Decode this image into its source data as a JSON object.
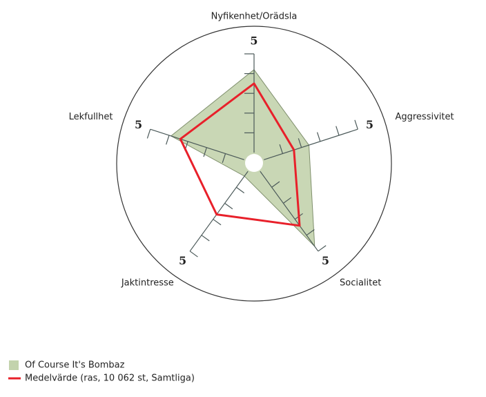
{
  "chart_data": {
    "type": "radar",
    "categories": [
      "Nyfikenhet/Orädsla",
      "Aggressivitet",
      "Socialitet",
      "Jaktintresse",
      "Lekfullhet"
    ],
    "ylim": [
      0,
      5
    ],
    "yticks": [
      1,
      2,
      3,
      4,
      5
    ],
    "series": [
      {
        "name": "Of Course It's Bombaz",
        "color": "#c3d3ad",
        "values": [
          4.2,
          2.4,
          4.7,
          0.3,
          3.9
        ]
      },
      {
        "name": "Medelvärde (ras, 10 062 st, Samtliga)",
        "color": "#e8202a",
        "values": [
          3.5,
          1.6,
          3.4,
          2.7,
          3.4
        ]
      }
    ]
  }
}
